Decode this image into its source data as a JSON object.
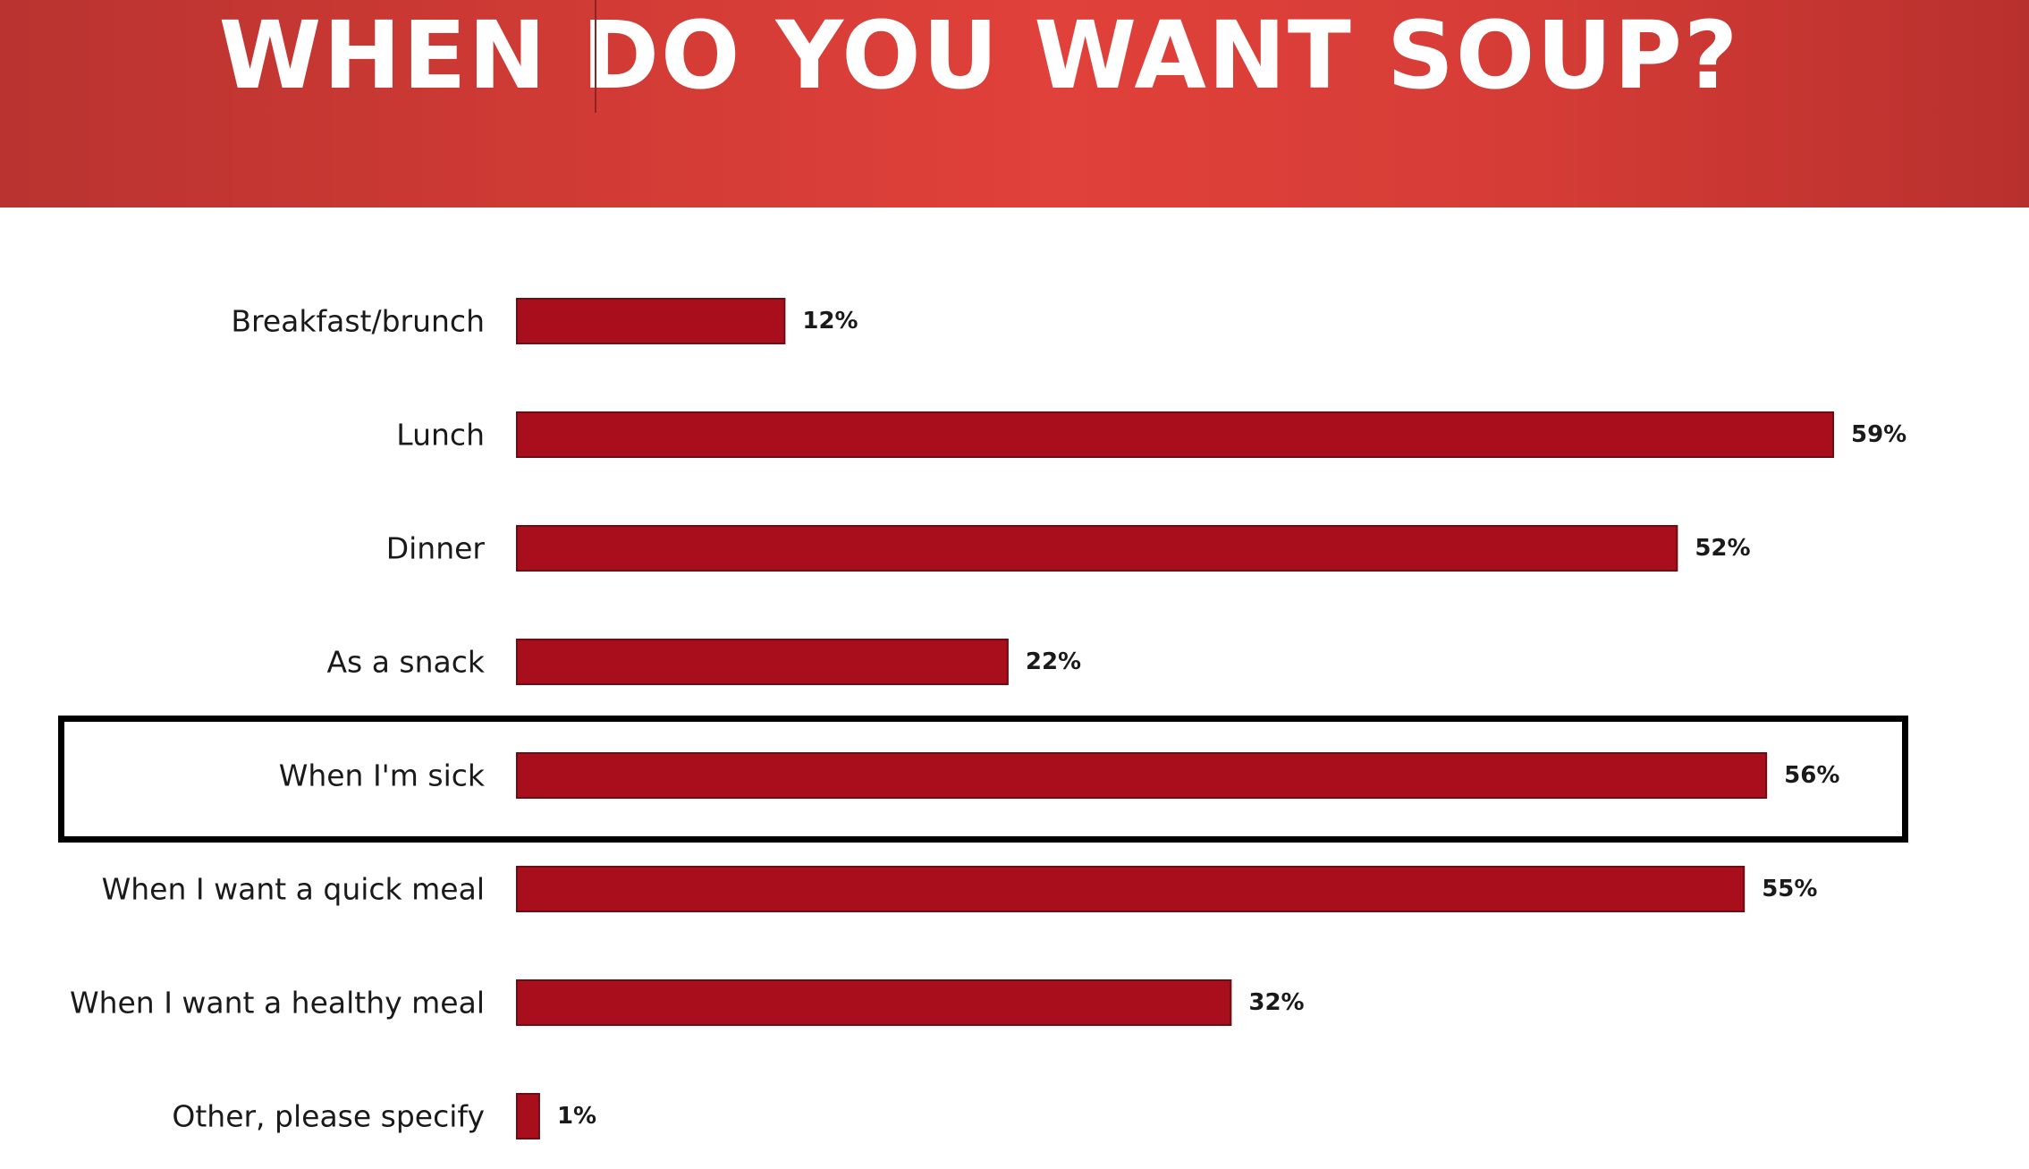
{
  "header": {
    "title": "WHEN DO YOU WANT SOUP?"
  },
  "colors": {
    "bar_fill": "#a90e1d",
    "bar_stroke": "#6e0c14",
    "header_bg": "#d63c36",
    "highlight_border": "#000000"
  },
  "chart_data": {
    "type": "bar",
    "orientation": "horizontal",
    "title": "WHEN DO YOU WANT SOUP?",
    "xlabel": "",
    "ylabel": "",
    "categories": [
      "Breakfast/brunch",
      "Lunch",
      "Dinner",
      "As a snack",
      "When I'm sick",
      "When I want a quick meal",
      "When I want a healthy meal",
      "Other, please specify"
    ],
    "values": [
      12,
      59,
      52,
      22,
      56,
      55,
      32,
      1
    ],
    "value_labels": [
      "12%",
      "59%",
      "52%",
      "22%",
      "56%",
      "55%",
      "32%",
      "1%"
    ],
    "unit": "%",
    "xlim": [
      0,
      59
    ],
    "grid": false,
    "legend": "none",
    "highlighted_category": "When I'm sick"
  }
}
